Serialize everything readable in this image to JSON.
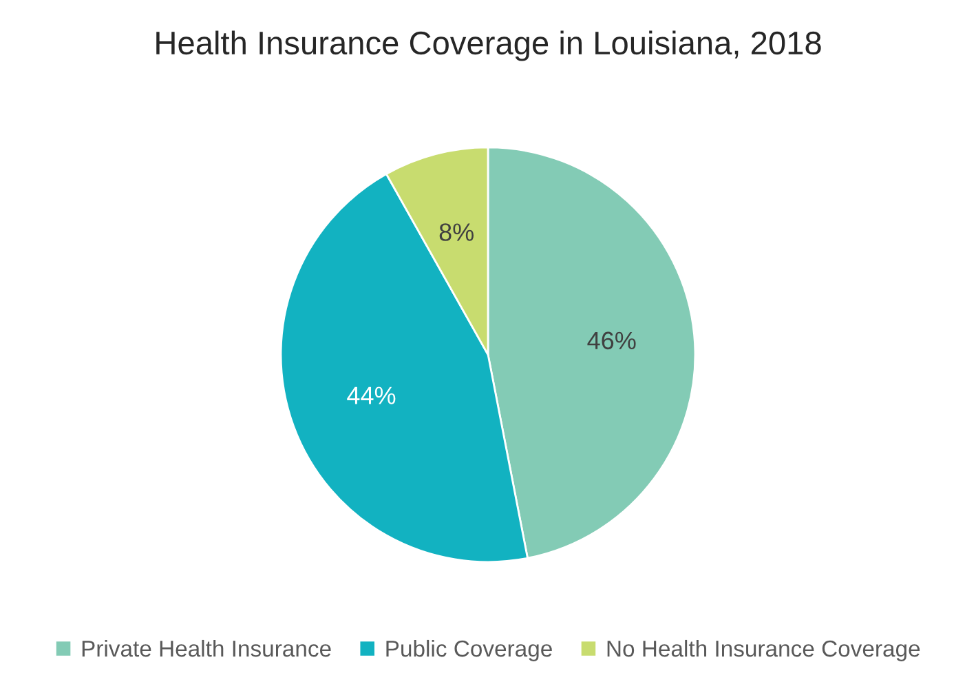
{
  "chart_data": {
    "type": "pie",
    "title": "Health Insurance Coverage in Louisiana, 2018",
    "categories": [
      "Private Health Insurance",
      "Public Coverage",
      "No Health Insurance Coverage"
    ],
    "values": [
      46,
      44,
      8
    ],
    "value_labels": [
      "46%",
      "44%",
      "8%"
    ],
    "colors": [
      "#83cbb5",
      "#12b2c1",
      "#c8dc6f"
    ],
    "legend": "bottom"
  }
}
